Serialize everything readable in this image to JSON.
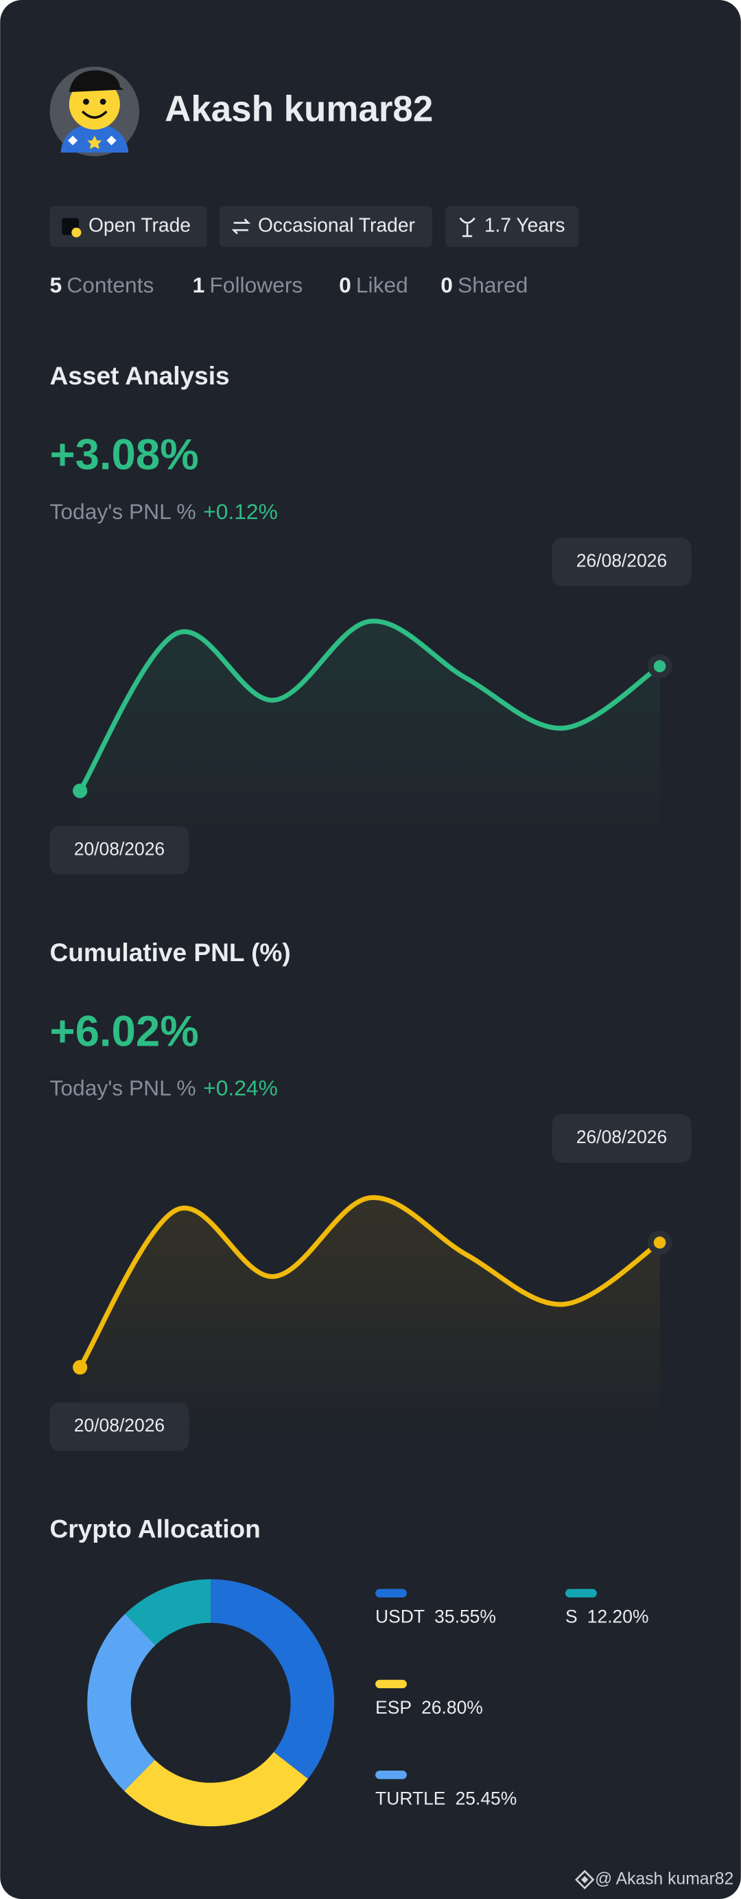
{
  "profile": {
    "name": "Akash kumar82",
    "tags": [
      "Open Trade",
      "Occasional Trader",
      "1.7 Years"
    ],
    "stats": [
      {
        "count": 5,
        "label": "Contents"
      },
      {
        "count": 1,
        "label": "Followers"
      },
      {
        "count": 0,
        "label": "Liked"
      },
      {
        "count": 0,
        "label": "Shared"
      }
    ],
    "watermark": "@ Akash kumar82"
  },
  "chart_data": [
    {
      "type": "line",
      "title": "Asset Analysis",
      "headline": "+3.08%",
      "pnl_label": "Today's PNL %",
      "pnl_value": "+0.12%",
      "categories": [
        "20/08/2026",
        null,
        null,
        null,
        null,
        null,
        "26/08/2026"
      ],
      "series": [
        {
          "color": "#2ebd85",
          "values": [
            0,
            3.89,
            2.24,
            4.19,
            2.78,
            1.55,
            3.08
          ]
        }
      ]
    },
    {
      "type": "line",
      "title": "Cumulative PNL (%)",
      "headline": "+6.02%",
      "pnl_label": "Today's PNL %",
      "pnl_value": "+0.24%",
      "categories": [
        "20/08/2026",
        null,
        null,
        null,
        null,
        null,
        "26/08/2026"
      ],
      "series": [
        {
          "color": "#f0b90b",
          "values": [
            0,
            7.6,
            4.38,
            8.18,
            5.43,
            3.04,
            6.02
          ]
        }
      ]
    },
    {
      "type": "pie",
      "title": "Crypto Allocation",
      "categories": [
        "USDT",
        "ESP",
        "TURTLE",
        "S"
      ],
      "values": [
        35.55,
        26.8,
        25.45,
        12.2
      ],
      "value_labels": [
        "35.55%",
        "26.80%",
        "25.45%",
        "12.20%"
      ],
      "colors": [
        "#1f6fd8",
        "#fdd535",
        "#5aa6f5",
        "#14a5b2"
      ]
    }
  ]
}
